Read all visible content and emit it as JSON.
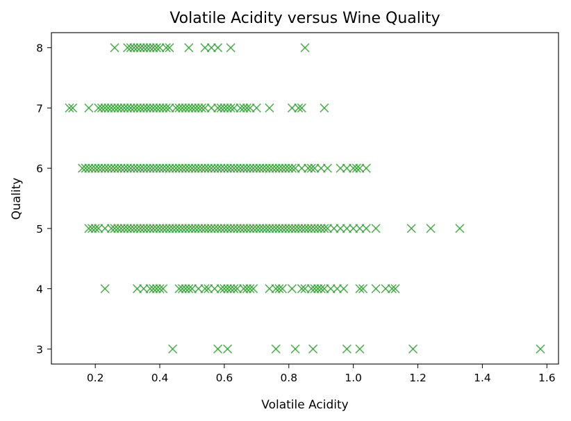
{
  "chart_data": {
    "type": "scatter",
    "title": "Volatile Acidity versus Wine Quality",
    "xlabel": "Volatile Acidity",
    "ylabel": "Quality",
    "xlim": [
      0.064,
      1.636
    ],
    "ylim": [
      2.75,
      8.25
    ],
    "xticks": [
      0.2,
      0.4,
      0.6,
      0.8,
      1.0,
      1.2,
      1.4,
      1.6
    ],
    "xtick_labels": [
      "0.2",
      "0.4",
      "0.6",
      "0.8",
      "1.0",
      "1.2",
      "1.4",
      "1.6"
    ],
    "yticks": [
      3,
      4,
      5,
      6,
      7,
      8
    ],
    "ytick_labels": [
      "3",
      "4",
      "5",
      "6",
      "7",
      "8"
    ],
    "marker": "x",
    "color": "#2ca02c",
    "grid": false,
    "series": [
      {
        "points": [
          [
            0.44,
            3
          ],
          [
            0.58,
            3
          ],
          [
            0.61,
            3
          ],
          [
            0.76,
            3
          ],
          [
            0.82,
            3
          ],
          [
            0.875,
            3
          ],
          [
            0.98,
            3
          ],
          [
            1.02,
            3
          ],
          [
            1.185,
            3
          ],
          [
            1.58,
            3
          ],
          [
            0.23,
            4
          ],
          [
            0.33,
            4
          ],
          [
            0.35,
            4
          ],
          [
            0.37,
            4
          ],
          [
            0.38,
            4
          ],
          [
            0.39,
            4
          ],
          [
            0.4,
            4
          ],
          [
            0.41,
            4
          ],
          [
            0.46,
            4
          ],
          [
            0.47,
            4
          ],
          [
            0.48,
            4
          ],
          [
            0.49,
            4
          ],
          [
            0.5,
            4
          ],
          [
            0.52,
            4
          ],
          [
            0.54,
            4
          ],
          [
            0.55,
            4
          ],
          [
            0.57,
            4
          ],
          [
            0.59,
            4
          ],
          [
            0.6,
            4
          ],
          [
            0.61,
            4
          ],
          [
            0.62,
            4
          ],
          [
            0.63,
            4
          ],
          [
            0.64,
            4
          ],
          [
            0.66,
            4
          ],
          [
            0.67,
            4
          ],
          [
            0.68,
            4
          ],
          [
            0.69,
            4
          ],
          [
            0.74,
            4
          ],
          [
            0.76,
            4
          ],
          [
            0.77,
            4
          ],
          [
            0.78,
            4
          ],
          [
            0.81,
            4
          ],
          [
            0.84,
            4
          ],
          [
            0.85,
            4
          ],
          [
            0.87,
            4
          ],
          [
            0.88,
            4
          ],
          [
            0.89,
            4
          ],
          [
            0.9,
            4
          ],
          [
            0.91,
            4
          ],
          [
            0.93,
            4
          ],
          [
            0.95,
            4
          ],
          [
            0.97,
            4
          ],
          [
            1.02,
            4
          ],
          [
            1.03,
            4
          ],
          [
            1.07,
            4
          ],
          [
            1.1,
            4
          ],
          [
            1.12,
            4
          ],
          [
            1.13,
            4
          ],
          [
            0.18,
            5
          ],
          [
            0.19,
            5
          ],
          [
            0.2,
            5
          ],
          [
            0.21,
            5
          ],
          [
            0.23,
            5
          ],
          [
            0.25,
            5
          ],
          [
            0.26,
            5
          ],
          [
            0.27,
            5
          ],
          [
            0.28,
            5
          ],
          [
            0.29,
            5
          ],
          [
            0.3,
            5
          ],
          [
            0.31,
            5
          ],
          [
            0.32,
            5
          ],
          [
            0.33,
            5
          ],
          [
            0.34,
            5
          ],
          [
            0.35,
            5
          ],
          [
            0.36,
            5
          ],
          [
            0.37,
            5
          ],
          [
            0.38,
            5
          ],
          [
            0.39,
            5
          ],
          [
            0.4,
            5
          ],
          [
            0.41,
            5
          ],
          [
            0.42,
            5
          ],
          [
            0.43,
            5
          ],
          [
            0.44,
            5
          ],
          [
            0.45,
            5
          ],
          [
            0.46,
            5
          ],
          [
            0.47,
            5
          ],
          [
            0.48,
            5
          ],
          [
            0.49,
            5
          ],
          [
            0.5,
            5
          ],
          [
            0.51,
            5
          ],
          [
            0.52,
            5
          ],
          [
            0.53,
            5
          ],
          [
            0.54,
            5
          ],
          [
            0.55,
            5
          ],
          [
            0.56,
            5
          ],
          [
            0.57,
            5
          ],
          [
            0.58,
            5
          ],
          [
            0.59,
            5
          ],
          [
            0.6,
            5
          ],
          [
            0.61,
            5
          ],
          [
            0.62,
            5
          ],
          [
            0.63,
            5
          ],
          [
            0.64,
            5
          ],
          [
            0.65,
            5
          ],
          [
            0.66,
            5
          ],
          [
            0.67,
            5
          ],
          [
            0.68,
            5
          ],
          [
            0.69,
            5
          ],
          [
            0.7,
            5
          ],
          [
            0.71,
            5
          ],
          [
            0.72,
            5
          ],
          [
            0.73,
            5
          ],
          [
            0.74,
            5
          ],
          [
            0.75,
            5
          ],
          [
            0.76,
            5
          ],
          [
            0.77,
            5
          ],
          [
            0.78,
            5
          ],
          [
            0.79,
            5
          ],
          [
            0.8,
            5
          ],
          [
            0.81,
            5
          ],
          [
            0.82,
            5
          ],
          [
            0.83,
            5
          ],
          [
            0.84,
            5
          ],
          [
            0.85,
            5
          ],
          [
            0.86,
            5
          ],
          [
            0.87,
            5
          ],
          [
            0.88,
            5
          ],
          [
            0.89,
            5
          ],
          [
            0.9,
            5
          ],
          [
            0.91,
            5
          ],
          [
            0.92,
            5
          ],
          [
            0.94,
            5
          ],
          [
            0.96,
            5
          ],
          [
            0.98,
            5
          ],
          [
            1.0,
            5
          ],
          [
            1.02,
            5
          ],
          [
            1.04,
            5
          ],
          [
            1.07,
            5
          ],
          [
            1.18,
            5
          ],
          [
            1.24,
            5
          ],
          [
            1.33,
            5
          ],
          [
            0.16,
            6
          ],
          [
            0.17,
            6
          ],
          [
            0.18,
            6
          ],
          [
            0.19,
            6
          ],
          [
            0.2,
            6
          ],
          [
            0.21,
            6
          ],
          [
            0.22,
            6
          ],
          [
            0.23,
            6
          ],
          [
            0.24,
            6
          ],
          [
            0.25,
            6
          ],
          [
            0.26,
            6
          ],
          [
            0.27,
            6
          ],
          [
            0.28,
            6
          ],
          [
            0.29,
            6
          ],
          [
            0.3,
            6
          ],
          [
            0.31,
            6
          ],
          [
            0.32,
            6
          ],
          [
            0.33,
            6
          ],
          [
            0.34,
            6
          ],
          [
            0.35,
            6
          ],
          [
            0.36,
            6
          ],
          [
            0.37,
            6
          ],
          [
            0.38,
            6
          ],
          [
            0.39,
            6
          ],
          [
            0.4,
            6
          ],
          [
            0.41,
            6
          ],
          [
            0.42,
            6
          ],
          [
            0.43,
            6
          ],
          [
            0.44,
            6
          ],
          [
            0.45,
            6
          ],
          [
            0.46,
            6
          ],
          [
            0.47,
            6
          ],
          [
            0.48,
            6
          ],
          [
            0.49,
            6
          ],
          [
            0.5,
            6
          ],
          [
            0.51,
            6
          ],
          [
            0.52,
            6
          ],
          [
            0.53,
            6
          ],
          [
            0.54,
            6
          ],
          [
            0.55,
            6
          ],
          [
            0.56,
            6
          ],
          [
            0.57,
            6
          ],
          [
            0.58,
            6
          ],
          [
            0.59,
            6
          ],
          [
            0.6,
            6
          ],
          [
            0.61,
            6
          ],
          [
            0.62,
            6
          ],
          [
            0.63,
            6
          ],
          [
            0.64,
            6
          ],
          [
            0.65,
            6
          ],
          [
            0.66,
            6
          ],
          [
            0.67,
            6
          ],
          [
            0.68,
            6
          ],
          [
            0.69,
            6
          ],
          [
            0.7,
            6
          ],
          [
            0.71,
            6
          ],
          [
            0.72,
            6
          ],
          [
            0.73,
            6
          ],
          [
            0.74,
            6
          ],
          [
            0.75,
            6
          ],
          [
            0.76,
            6
          ],
          [
            0.77,
            6
          ],
          [
            0.78,
            6
          ],
          [
            0.79,
            6
          ],
          [
            0.8,
            6
          ],
          [
            0.81,
            6
          ],
          [
            0.82,
            6
          ],
          [
            0.84,
            6
          ],
          [
            0.86,
            6
          ],
          [
            0.87,
            6
          ],
          [
            0.88,
            6
          ],
          [
            0.9,
            6
          ],
          [
            0.92,
            6
          ],
          [
            0.96,
            6
          ],
          [
            0.98,
            6
          ],
          [
            1.0,
            6
          ],
          [
            1.01,
            6
          ],
          [
            1.02,
            6
          ],
          [
            1.04,
            6
          ],
          [
            0.12,
            7
          ],
          [
            0.13,
            7
          ],
          [
            0.18,
            7
          ],
          [
            0.21,
            7
          ],
          [
            0.22,
            7
          ],
          [
            0.23,
            7
          ],
          [
            0.24,
            7
          ],
          [
            0.25,
            7
          ],
          [
            0.26,
            7
          ],
          [
            0.27,
            7
          ],
          [
            0.28,
            7
          ],
          [
            0.29,
            7
          ],
          [
            0.3,
            7
          ],
          [
            0.31,
            7
          ],
          [
            0.32,
            7
          ],
          [
            0.33,
            7
          ],
          [
            0.34,
            7
          ],
          [
            0.35,
            7
          ],
          [
            0.36,
            7
          ],
          [
            0.37,
            7
          ],
          [
            0.38,
            7
          ],
          [
            0.39,
            7
          ],
          [
            0.4,
            7
          ],
          [
            0.41,
            7
          ],
          [
            0.42,
            7
          ],
          [
            0.43,
            7
          ],
          [
            0.45,
            7
          ],
          [
            0.46,
            7
          ],
          [
            0.47,
            7
          ],
          [
            0.48,
            7
          ],
          [
            0.49,
            7
          ],
          [
            0.5,
            7
          ],
          [
            0.51,
            7
          ],
          [
            0.52,
            7
          ],
          [
            0.53,
            7
          ],
          [
            0.54,
            7
          ],
          [
            0.56,
            7
          ],
          [
            0.58,
            7
          ],
          [
            0.59,
            7
          ],
          [
            0.6,
            7
          ],
          [
            0.61,
            7
          ],
          [
            0.62,
            7
          ],
          [
            0.63,
            7
          ],
          [
            0.65,
            7
          ],
          [
            0.66,
            7
          ],
          [
            0.67,
            7
          ],
          [
            0.68,
            7
          ],
          [
            0.7,
            7
          ],
          [
            0.74,
            7
          ],
          [
            0.81,
            7
          ],
          [
            0.83,
            7
          ],
          [
            0.84,
            7
          ],
          [
            0.91,
            7
          ],
          [
            0.26,
            8
          ],
          [
            0.3,
            8
          ],
          [
            0.31,
            8
          ],
          [
            0.32,
            8
          ],
          [
            0.33,
            8
          ],
          [
            0.34,
            8
          ],
          [
            0.35,
            8
          ],
          [
            0.36,
            8
          ],
          [
            0.37,
            8
          ],
          [
            0.38,
            8
          ],
          [
            0.39,
            8
          ],
          [
            0.4,
            8
          ],
          [
            0.42,
            8
          ],
          [
            0.43,
            8
          ],
          [
            0.49,
            8
          ],
          [
            0.54,
            8
          ],
          [
            0.56,
            8
          ],
          [
            0.58,
            8
          ],
          [
            0.62,
            8
          ],
          [
            0.85,
            8
          ]
        ]
      }
    ]
  }
}
